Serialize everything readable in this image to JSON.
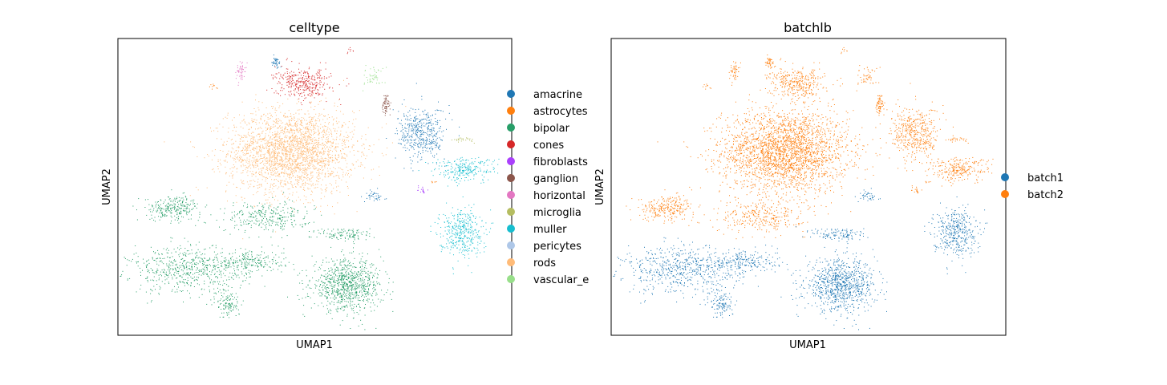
{
  "chart_data": [
    {
      "type": "scatter",
      "title": "celltype",
      "xlabel": "UMAP1",
      "ylabel": "UMAP2",
      "grid": false,
      "legend_position": "right",
      "legend": [
        {
          "name": "amacrine",
          "color": "#1f77b4"
        },
        {
          "name": "astrocytes",
          "color": "#ff7f0e"
        },
        {
          "name": "bipolar",
          "color": "#279e68"
        },
        {
          "name": "cones",
          "color": "#d62728"
        },
        {
          "name": "fibroblasts",
          "color": "#aa40fc"
        },
        {
          "name": "ganglion",
          "color": "#8c564b"
        },
        {
          "name": "horizontal",
          "color": "#e377c2"
        },
        {
          "name": "microglia",
          "color": "#b5bd61"
        },
        {
          "name": "muller",
          "color": "#17becf"
        },
        {
          "name": "pericytes",
          "color": "#aec7e8"
        },
        {
          "name": "rods",
          "color": "#ffbb78"
        },
        {
          "name": "vascular_e",
          "color": "#98df8a"
        }
      ],
      "clusters": [
        {
          "category": "rods",
          "cx": 0.44,
          "cy": 0.62,
          "rx": 0.16,
          "ry": 0.14,
          "n": 2600
        },
        {
          "category": "bipolar",
          "cx": 0.58,
          "cy": 0.17,
          "rx": 0.09,
          "ry": 0.085,
          "n": 900
        },
        {
          "category": "bipolar",
          "cx": 0.18,
          "cy": 0.22,
          "rx": 0.15,
          "ry": 0.08,
          "n": 600
        },
        {
          "category": "bipolar",
          "cx": 0.14,
          "cy": 0.43,
          "rx": 0.07,
          "ry": 0.04,
          "n": 260
        },
        {
          "category": "bipolar",
          "cx": 0.38,
          "cy": 0.4,
          "rx": 0.11,
          "ry": 0.05,
          "n": 300
        },
        {
          "category": "bipolar",
          "cx": 0.33,
          "cy": 0.25,
          "rx": 0.09,
          "ry": 0.04,
          "n": 220
        },
        {
          "category": "bipolar",
          "cx": 0.58,
          "cy": 0.34,
          "rx": 0.07,
          "ry": 0.025,
          "n": 120
        },
        {
          "category": "bipolar",
          "cx": 0.28,
          "cy": 0.11,
          "rx": 0.03,
          "ry": 0.05,
          "n": 120
        },
        {
          "category": "muller",
          "cx": 0.87,
          "cy": 0.35,
          "rx": 0.055,
          "ry": 0.08,
          "n": 400
        },
        {
          "category": "muller",
          "cx": 0.88,
          "cy": 0.56,
          "rx": 0.08,
          "ry": 0.04,
          "n": 250
        },
        {
          "category": "amacrine",
          "cx": 0.77,
          "cy": 0.68,
          "rx": 0.06,
          "ry": 0.09,
          "n": 450
        },
        {
          "category": "amacrine",
          "cx": 0.65,
          "cy": 0.47,
          "rx": 0.025,
          "ry": 0.02,
          "n": 40
        },
        {
          "category": "amacrine",
          "cx": 0.4,
          "cy": 0.92,
          "rx": 0.012,
          "ry": 0.018,
          "n": 40
        },
        {
          "category": "cones",
          "cx": 0.47,
          "cy": 0.85,
          "rx": 0.07,
          "ry": 0.05,
          "n": 350
        },
        {
          "category": "cones",
          "cx": 0.59,
          "cy": 0.96,
          "rx": 0.01,
          "ry": 0.01,
          "n": 8
        },
        {
          "category": "ganglion",
          "cx": 0.68,
          "cy": 0.78,
          "rx": 0.01,
          "ry": 0.04,
          "n": 70
        },
        {
          "category": "horizontal",
          "cx": 0.31,
          "cy": 0.89,
          "rx": 0.012,
          "ry": 0.03,
          "n": 50
        },
        {
          "category": "vascular_e",
          "cx": 0.65,
          "cy": 0.87,
          "rx": 0.03,
          "ry": 0.035,
          "n": 50
        },
        {
          "category": "microglia",
          "cx": 0.88,
          "cy": 0.66,
          "rx": 0.03,
          "ry": 0.01,
          "n": 25
        },
        {
          "category": "fibroblasts",
          "cx": 0.77,
          "cy": 0.49,
          "rx": 0.01,
          "ry": 0.015,
          "n": 18
        },
        {
          "category": "astrocytes",
          "cx": 0.24,
          "cy": 0.84,
          "rx": 0.01,
          "ry": 0.008,
          "n": 10
        },
        {
          "category": "astrocytes",
          "cx": 0.8,
          "cy": 0.52,
          "rx": 0.01,
          "ry": 0.01,
          "n": 6
        }
      ]
    },
    {
      "type": "scatter",
      "title": "batchlb",
      "xlabel": "UMAP1",
      "ylabel": "UMAP2",
      "grid": false,
      "legend_position": "right",
      "legend": [
        {
          "name": "batch1",
          "color": "#1f77b4"
        },
        {
          "name": "batch2",
          "color": "#ff7f0e"
        }
      ],
      "note_map": {
        "rods": "batch2",
        "bipolar_upper": "batch2",
        "bipolar_lower": "batch1",
        "cones": "batch2",
        "muller_upper": "batch2",
        "muller_lower": "batch1"
      }
    }
  ]
}
